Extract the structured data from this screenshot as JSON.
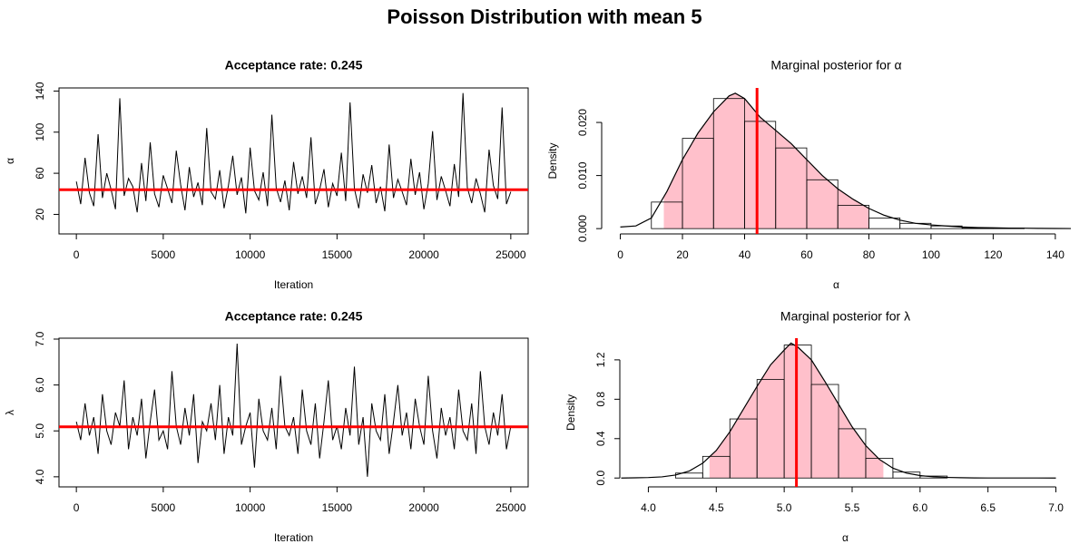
{
  "title": "Poisson Distribution with mean 5",
  "chart_data": [
    {
      "type": "line",
      "title": "Acceptance rate: 0.245",
      "title_bold": true,
      "xlabel": "Iteration",
      "ylabel": "α",
      "box": true,
      "color": "#000000",
      "line_color": "#ff0000",
      "hline": 44,
      "xlim": [
        -1000,
        26000
      ],
      "xticks": [
        0,
        5000,
        10000,
        15000,
        20000,
        25000
      ],
      "ylim": [
        1,
        143
      ],
      "yticks": [
        20,
        60,
        100,
        140
      ],
      "x": [
        0,
        250,
        500,
        750,
        1000,
        1250,
        1500,
        1750,
        2000,
        2250,
        2500,
        2750,
        3000,
        3250,
        3500,
        3750,
        4000,
        4250,
        4500,
        4750,
        5000,
        5250,
        5500,
        5750,
        6000,
        6250,
        6500,
        6750,
        7000,
        7250,
        7500,
        7750,
        8000,
        8250,
        8500,
        8750,
        9000,
        9250,
        9500,
        9750,
        10000,
        10250,
        10500,
        10750,
        11000,
        11250,
        11500,
        11750,
        12000,
        12250,
        12500,
        12750,
        13000,
        13250,
        13500,
        13750,
        14000,
        14250,
        14500,
        14750,
        15000,
        15250,
        15500,
        15750,
        16000,
        16250,
        16500,
        16750,
        17000,
        17250,
        17500,
        17750,
        18000,
        18250,
        18500,
        18750,
        19000,
        19250,
        19500,
        19750,
        20000,
        20250,
        20500,
        20750,
        21000,
        21250,
        21500,
        21750,
        22000,
        22250,
        22500,
        22750,
        23000,
        23250,
        23500,
        23750,
        24000,
        24250,
        24500,
        24750,
        25000
      ],
      "values": [
        52,
        30,
        75,
        41,
        28,
        98,
        36,
        60,
        44,
        25,
        133,
        38,
        55,
        47,
        22,
        70,
        33,
        90,
        40,
        27,
        58,
        45,
        31,
        82,
        49,
        24,
        66,
        37,
        51,
        29,
        104,
        42,
        35,
        63,
        26,
        48,
        77,
        39,
        56,
        21,
        85,
        43,
        34,
        61,
        28,
        117,
        46,
        32,
        53,
        24,
        71,
        40,
        57,
        36,
        95,
        30,
        44,
        64,
        27,
        50,
        38,
        80,
        33,
        129,
        45,
        26,
        59,
        41,
        68,
        31,
        47,
        23,
        88,
        36,
        54,
        42,
        29,
        74,
        39,
        61,
        25,
        50,
        101,
        34,
        57,
        43,
        28,
        69,
        37,
        138,
        46,
        31,
        55,
        40,
        22,
        83,
        48,
        35,
        124,
        30,
        42
      ]
    },
    {
      "type": "histogram",
      "title": "Marginal posterior for α",
      "title_bold": false,
      "xlabel": "α",
      "ylabel": "Density",
      "box": false,
      "color": "#000000",
      "fill": "#ffc0cb",
      "line_color": "#ff0000",
      "vline": 44,
      "shade_range": [
        14,
        80
      ],
      "xlim": [
        -6,
        145
      ],
      "xticks": [
        0,
        20,
        40,
        60,
        80,
        100,
        120,
        140
      ],
      "ylim": [
        -0.001,
        0.0265
      ],
      "yticks": [
        {
          "value": 0,
          "label": "0.000"
        },
        {
          "value": 0.01,
          "label": "0.010"
        },
        {
          "value": 0.02,
          "label": "0.020"
        }
      ],
      "bins": [
        10,
        20,
        30,
        40,
        50,
        60,
        70,
        80,
        90,
        100,
        110,
        120,
        130
      ],
      "values": [
        0.005,
        0.017,
        0.0245,
        0.0202,
        0.0152,
        0.0092,
        0.0044,
        0.002,
        0.001,
        0.0005,
        0.0001,
        0.0001
      ],
      "density": {
        "x": [
          0,
          5,
          10,
          15,
          20,
          25,
          30,
          35,
          37,
          40,
          45,
          50,
          55,
          60,
          65,
          70,
          75,
          80,
          85,
          90,
          95,
          100,
          105,
          110,
          115,
          120,
          125,
          130,
          135,
          140,
          145
        ],
        "y": [
          0.0003,
          0.0005,
          0.002,
          0.007,
          0.013,
          0.018,
          0.022,
          0.025,
          0.0255,
          0.0245,
          0.021,
          0.0185,
          0.016,
          0.013,
          0.01,
          0.0075,
          0.0055,
          0.0038,
          0.0025,
          0.0016,
          0.001,
          0.0007,
          0.0005,
          0.0003,
          0.0002,
          0.00015,
          0.0001,
          8e-05,
          4e-05,
          2e-05,
          1e-05
        ]
      }
    },
    {
      "type": "line",
      "title": "Acceptance rate: 0.245",
      "title_bold": true,
      "xlabel": "Iteration",
      "ylabel": "λ",
      "box": true,
      "color": "#000000",
      "line_color": "#ff0000",
      "hline": 5.09,
      "xlim": [
        -1000,
        26000
      ],
      "xticks": [
        0,
        5000,
        10000,
        15000,
        20000,
        25000
      ],
      "ylim": [
        3.78,
        7.02
      ],
      "yticks": [
        {
          "value": 4,
          "label": "4.0"
        },
        {
          "value": 5,
          "label": "5.0"
        },
        {
          "value": 6,
          "label": "6.0"
        },
        {
          "value": 7,
          "label": "7.0"
        }
      ],
      "x": [
        0,
        250,
        500,
        750,
        1000,
        1250,
        1500,
        1750,
        2000,
        2250,
        2500,
        2750,
        3000,
        3250,
        3500,
        3750,
        4000,
        4250,
        4500,
        4750,
        5000,
        5250,
        5500,
        5750,
        6000,
        6250,
        6500,
        6750,
        7000,
        7250,
        7500,
        7750,
        8000,
        8250,
        8500,
        8750,
        9000,
        9250,
        9500,
        9750,
        10000,
        10250,
        10500,
        10750,
        11000,
        11250,
        11500,
        11750,
        12000,
        12250,
        12500,
        12750,
        13000,
        13250,
        13500,
        13750,
        14000,
        14250,
        14500,
        14750,
        15000,
        15250,
        15500,
        15750,
        16000,
        16250,
        16500,
        16750,
        17000,
        17250,
        17500,
        17750,
        18000,
        18250,
        18500,
        18750,
        19000,
        19250,
        19500,
        19750,
        20000,
        20250,
        20500,
        20750,
        21000,
        21250,
        21500,
        21750,
        22000,
        22250,
        22500,
        22750,
        23000,
        23250,
        23500,
        23750,
        24000,
        24250,
        24500,
        24750,
        25000
      ],
      "values": [
        5.2,
        4.8,
        5.6,
        4.9,
        5.3,
        4.5,
        5.8,
        5.0,
        4.7,
        5.4,
        5.1,
        6.1,
        4.6,
        5.3,
        4.9,
        5.7,
        4.4,
        5.2,
        5.9,
        4.8,
        5.0,
        4.6,
        6.3,
        5.1,
        4.7,
        5.5,
        4.9,
        5.8,
        4.3,
        5.2,
        5.0,
        5.6,
        4.8,
        6.0,
        4.5,
        5.3,
        4.9,
        6.9,
        4.7,
        5.1,
        5.4,
        4.2,
        5.7,
        5.0,
        4.8,
        5.5,
        4.6,
        6.2,
        5.1,
        4.9,
        5.3,
        4.5,
        5.9,
        5.0,
        4.7,
        5.6,
        4.4,
        5.2,
        6.1,
        4.8,
        5.1,
        4.6,
        5.5,
        4.9,
        6.4,
        4.7,
        5.3,
        4.0,
        5.6,
        5.0,
        4.8,
        5.8,
        4.5,
        5.2,
        6.0,
        4.9,
        5.4,
        4.6,
        5.7,
        5.1,
        4.7,
        6.2,
        5.0,
        4.4,
        5.5,
        4.9,
        5.3,
        4.6,
        5.9,
        5.0,
        4.8,
        5.6,
        4.5,
        6.3,
        5.1,
        4.7,
        5.4,
        4.9,
        5.8,
        4.6,
        5.1
      ]
    },
    {
      "type": "histogram",
      "title": "Marginal posterior for λ",
      "title_bold": false,
      "xlabel": "α",
      "ylabel": "Density",
      "box": false,
      "color": "#000000",
      "fill": "#ffc0cb",
      "line_color": "#ff0000",
      "vline": 5.09,
      "shade_range": [
        4.45,
        5.73
      ],
      "xlim": [
        3.79,
        7.11
      ],
      "xticks": [
        {
          "value": 4,
          "label": "4.0"
        },
        4.5,
        {
          "value": 5,
          "label": "5.0"
        },
        5.5,
        {
          "value": 6,
          "label": "6.0"
        },
        6.5,
        {
          "value": 7,
          "label": "7.0"
        }
      ],
      "ylim": [
        -0.09,
        1.42
      ],
      "yticks": [
        {
          "value": 0,
          "label": "0.0"
        },
        0.4,
        0.8,
        1.2
      ],
      "bins": [
        4.2,
        4.4,
        4.6,
        4.8,
        5.0,
        5.2,
        5.4,
        5.6,
        5.8,
        6.0,
        6.2
      ],
      "values": [
        0.05,
        0.22,
        0.6,
        1.0,
        1.35,
        0.95,
        0.5,
        0.2,
        0.06,
        0.02
      ],
      "density": {
        "x": [
          3.8,
          3.9,
          4.0,
          4.1,
          4.2,
          4.3,
          4.4,
          4.5,
          4.6,
          4.7,
          4.8,
          4.9,
          5.0,
          5.05,
          5.1,
          5.2,
          5.3,
          5.4,
          5.5,
          5.6,
          5.7,
          5.8,
          5.9,
          6.0,
          6.1,
          6.2,
          6.3,
          6.4,
          6.5,
          7.0
        ],
        "y": [
          0,
          0.002,
          0.005,
          0.012,
          0.03,
          0.07,
          0.15,
          0.28,
          0.47,
          0.7,
          0.93,
          1.15,
          1.3,
          1.37,
          1.33,
          1.2,
          0.98,
          0.75,
          0.52,
          0.33,
          0.19,
          0.1,
          0.05,
          0.025,
          0.012,
          0.006,
          0.003,
          0.001,
          0.0005,
          0
        ]
      }
    }
  ]
}
